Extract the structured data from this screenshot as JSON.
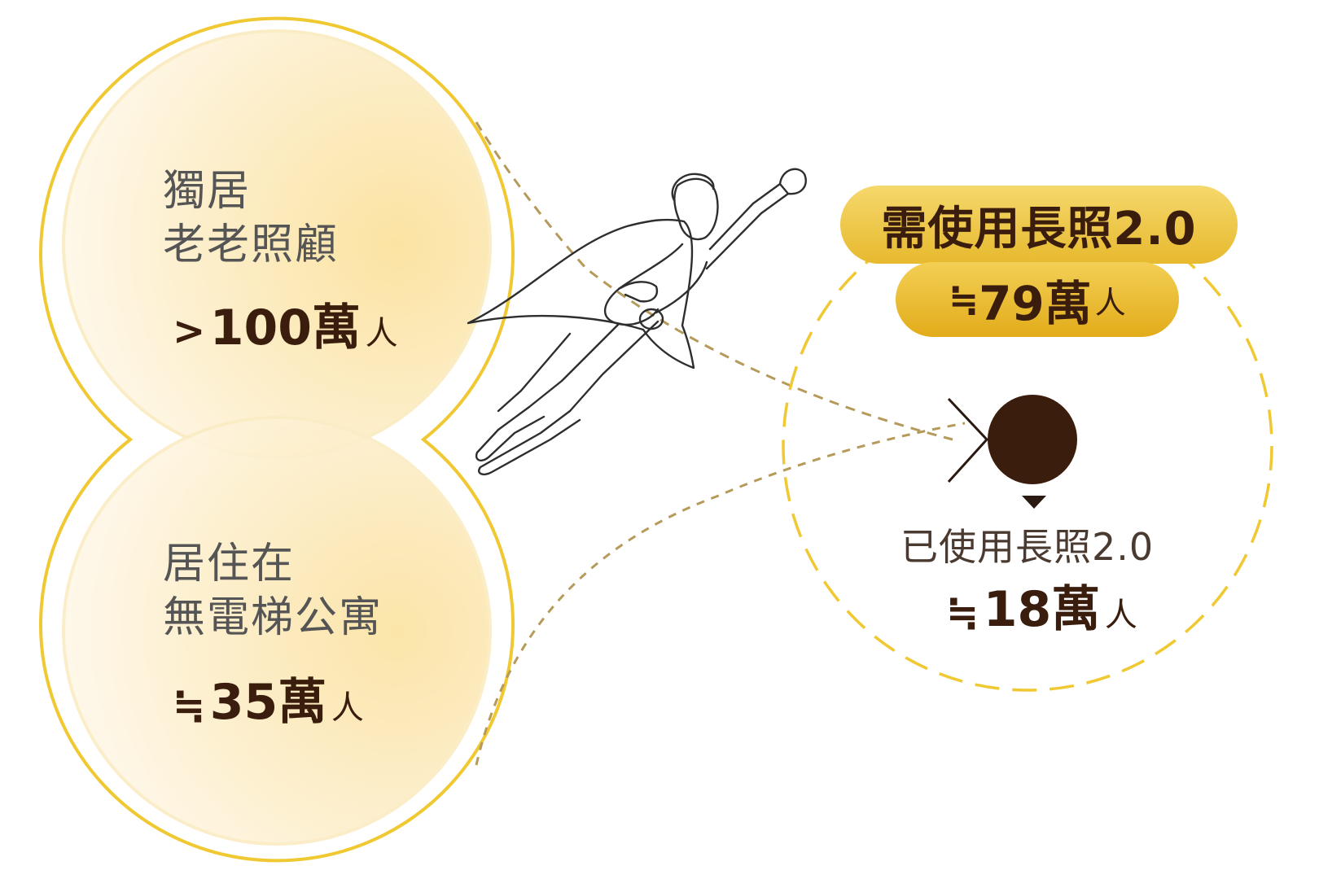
{
  "top_circle": {
    "label_line1": "獨居",
    "label_line2": "老老照顧",
    "prefix": ">",
    "value": "100萬",
    "unit": "人"
  },
  "bottom_circle": {
    "label_line1": "居住在",
    "label_line2": "無電梯公寓",
    "prefix": "≒",
    "value": "35萬",
    "unit": "人"
  },
  "need_ltc": {
    "title": "需使用長照2.0",
    "prefix": "≒",
    "value": "79萬",
    "unit": "人"
  },
  "used_ltc": {
    "label": "已使用長照2.0",
    "prefix": "≒",
    "value": "18萬",
    "unit": "人"
  },
  "colors": {
    "gold_ring": "#f0c832",
    "circle_fill": "#fbe7b0",
    "dark_brown": "#3a1d0d",
    "pill_gold": "#e9bb30",
    "dashed_line": "#b59a5a"
  },
  "icons": {
    "hero": "flying-superhero-icon",
    "target": "target-dot-icon",
    "pointer": "triangle-down-icon"
  }
}
